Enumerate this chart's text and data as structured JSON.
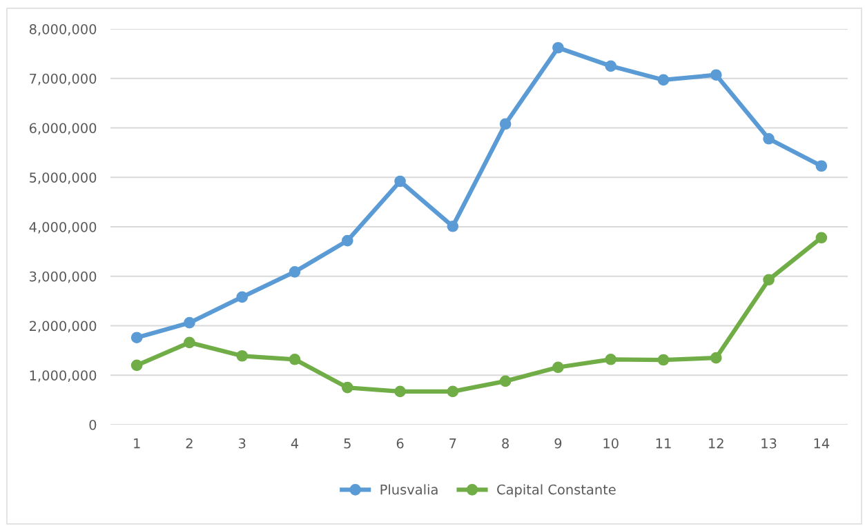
{
  "chart_data": {
    "type": "line",
    "categories": [
      "1",
      "2",
      "3",
      "4",
      "5",
      "6",
      "7",
      "8",
      "9",
      "10",
      "11",
      "12",
      "13",
      "14"
    ],
    "series": [
      {
        "name": "Plusvalia",
        "color": "#5b9bd5",
        "values": [
          1760000,
          2060000,
          2580000,
          3090000,
          3720000,
          4920000,
          4010000,
          6080000,
          7620000,
          7250000,
          6970000,
          7070000,
          5780000,
          5230000
        ]
      },
      {
        "name": "Capital Constante",
        "color": "#70ad47",
        "values": [
          1200000,
          1660000,
          1390000,
          1320000,
          750000,
          670000,
          670000,
          880000,
          1160000,
          1320000,
          1310000,
          1350000,
          2930000,
          3780000
        ]
      }
    ],
    "ylim": [
      0,
      8000000
    ],
    "yticks": [
      0,
      {
        "value": 1000000,
        "label": "1,000,000"
      },
      {
        "value": 2000000,
        "label": "2,000,000"
      },
      {
        "value": 3000000,
        "label": "3,000,000"
      },
      {
        "value": 4000000,
        "label": "4,000,000"
      },
      {
        "value": 5000000,
        "label": "5,000,000"
      },
      {
        "value": 6000000,
        "label": "6,000,000"
      },
      {
        "value": 7000000,
        "label": "7,000,000"
      },
      {
        "value": 8000000,
        "label": "8,000,000"
      }
    ],
    "grid": "y",
    "legend": "bottom",
    "marker": "circle",
    "line_style": "solid"
  }
}
